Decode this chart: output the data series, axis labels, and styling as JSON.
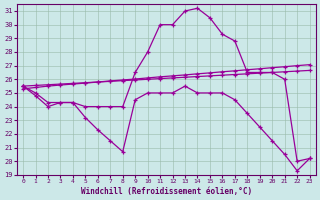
{
  "xlabel": "Windchill (Refroidissement éolien,°C)",
  "background_color": "#cce8e8",
  "line_color": "#990099",
  "xlim": [
    -0.5,
    23.5
  ],
  "ylim": [
    19,
    31.5
  ],
  "yticks": [
    19,
    20,
    21,
    22,
    23,
    24,
    25,
    26,
    27,
    28,
    29,
    30,
    31
  ],
  "xticks": [
    0,
    1,
    2,
    3,
    4,
    5,
    6,
    7,
    8,
    9,
    10,
    11,
    12,
    13,
    14,
    15,
    16,
    17,
    18,
    19,
    20,
    21,
    22,
    23
  ],
  "series": [
    {
      "x": [
        0,
        1,
        2,
        3,
        4,
        5,
        6,
        7,
        8,
        9,
        10,
        11,
        12,
        13,
        14,
        15,
        16,
        17,
        18,
        19,
        20,
        21,
        22,
        23
      ],
      "y": [
        25.5,
        25.0,
        24.3,
        24.3,
        24.3,
        24.0,
        24.0,
        24.0,
        24.0,
        26.5,
        28.0,
        30.0,
        30.0,
        31.0,
        31.2,
        30.5,
        29.3,
        28.8,
        26.5,
        26.5,
        26.5,
        26.0,
        20.0,
        20.2
      ]
    },
    {
      "x": [
        0,
        1,
        2,
        3,
        4,
        5,
        6,
        7,
        8,
        9,
        10,
        11,
        12,
        13,
        14,
        15,
        16,
        17,
        18,
        19,
        20,
        21,
        22,
        23
      ],
      "y": [
        25.5,
        24.8,
        24.0,
        24.3,
        24.3,
        23.2,
        22.3,
        21.5,
        20.7,
        24.5,
        25.0,
        25.0,
        25.0,
        25.5,
        25.0,
        25.0,
        25.0,
        24.5,
        23.5,
        22.5,
        21.5,
        20.5,
        19.3,
        20.2
      ]
    },
    {
      "x": [
        0,
        1,
        2,
        3,
        4,
        5,
        6,
        7,
        8,
        9,
        10,
        11,
        12,
        13,
        14,
        15,
        16,
        17,
        18,
        19,
        20,
        21,
        22,
        23
      ],
      "y": [
        25.5,
        25.55,
        25.6,
        25.65,
        25.7,
        25.75,
        25.8,
        25.85,
        25.9,
        25.95,
        26.0,
        26.05,
        26.1,
        26.15,
        26.2,
        26.25,
        26.3,
        26.35,
        26.4,
        26.45,
        26.5,
        26.55,
        26.6,
        26.65
      ]
    },
    {
      "x": [
        0,
        1,
        2,
        3,
        4,
        5,
        6,
        7,
        8,
        9,
        10,
        11,
        12,
        13,
        14,
        15,
        16,
        17,
        18,
        19,
        20,
        21,
        22,
        23
      ],
      "y": [
        25.3,
        25.4,
        25.5,
        25.58,
        25.65,
        25.72,
        25.8,
        25.88,
        25.95,
        26.02,
        26.1,
        26.18,
        26.25,
        26.32,
        26.4,
        26.47,
        26.55,
        26.62,
        26.7,
        26.77,
        26.85,
        26.92,
        27.0,
        27.07
      ]
    }
  ]
}
